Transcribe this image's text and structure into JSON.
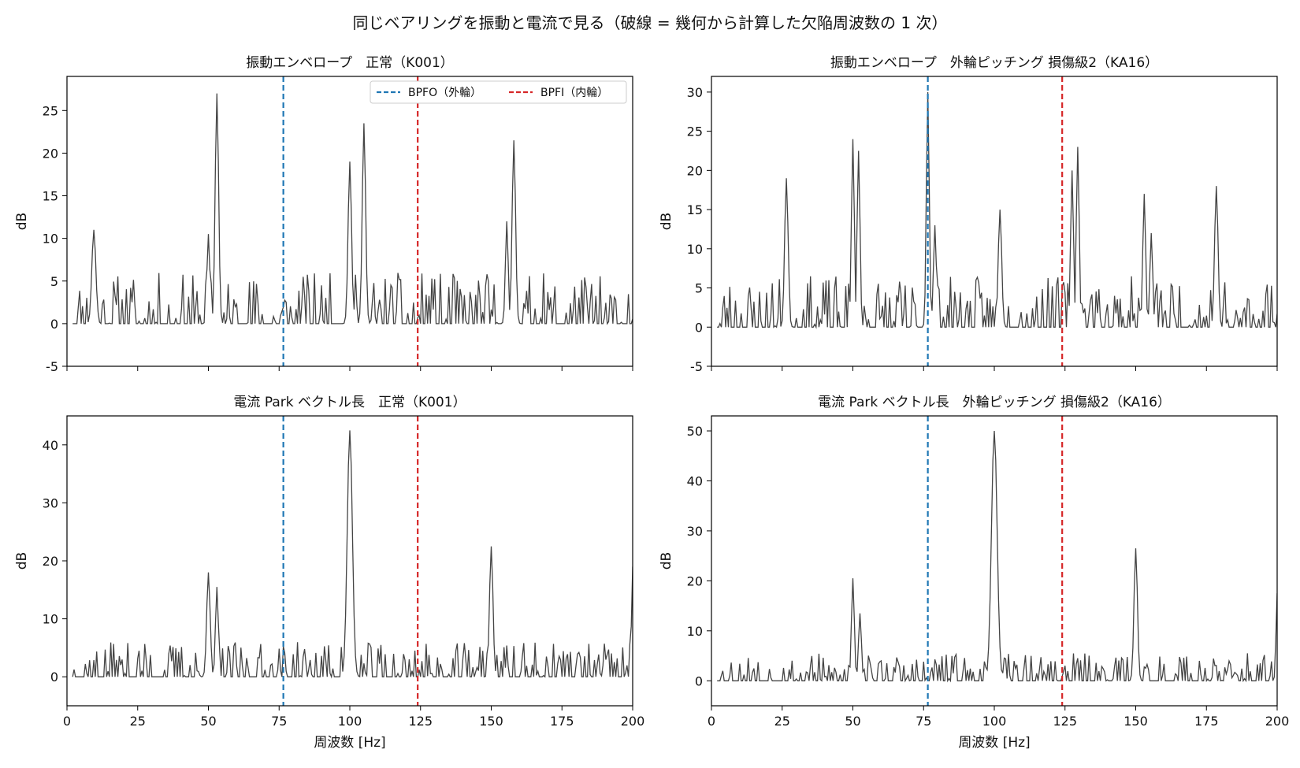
{
  "figure": {
    "title": "同じベアリングを振動と電流で見る（破線 = 幾何から計算した欠陥周波数の 1 次）",
    "xlabel": "周波数 [Hz]",
    "colors": {
      "trace": "#444444",
      "bpfo": "#1f77b4",
      "bpfi": "#d62728",
      "axis": "#000000"
    }
  },
  "legend": {
    "placement": "top-right of first panel",
    "entries": [
      {
        "label": "BPFO（外輪）",
        "color": "#1f77b4",
        "style": "dashed"
      },
      {
        "label": "BPFI（内輪）",
        "color": "#d62728",
        "style": "dashed"
      }
    ]
  },
  "chart_data": [
    {
      "type": "line",
      "title": "振動エンベロープ　正常（K001）",
      "xlabel": "",
      "ylabel": "dB",
      "xlim": [
        0,
        200
      ],
      "ylim": [
        -5,
        29
      ],
      "xticks": [
        0,
        25,
        50,
        75,
        100,
        125,
        150,
        175,
        200
      ],
      "yticks": [
        -5,
        0,
        5,
        10,
        15,
        20,
        25
      ],
      "show_xtick_labels": false,
      "show_legend": true,
      "vlines": [
        {
          "name": "BPFO（外輪）",
          "x": 76.5
        },
        {
          "name": "BPFI（内輪）",
          "x": 124
        }
      ],
      "series": [
        {
          "seed": 11,
          "noise_amp": 7,
          "noise_offset": -1,
          "peaks": [
            [
              9.5,
              11,
              0.7
            ],
            [
              50,
              10.5,
              0.5
            ],
            [
              53,
              27,
              0.6
            ],
            [
              100,
              19,
              0.6
            ],
            [
              105,
              23.5,
              0.6
            ],
            [
              155.5,
              12,
              0.5
            ],
            [
              158,
              21.5,
              0.6
            ]
          ]
        }
      ]
    },
    {
      "type": "line",
      "title": "振動エンベロープ　外輪ピッチング 損傷級2（KA16）",
      "xlabel": "",
      "ylabel": "dB",
      "xlim": [
        0,
        200
      ],
      "ylim": [
        -5,
        32
      ],
      "xticks": [
        0,
        25,
        50,
        75,
        100,
        125,
        150,
        175,
        200
      ],
      "yticks": [
        -5,
        0,
        5,
        10,
        15,
        20,
        25,
        30
      ],
      "show_xtick_labels": false,
      "show_legend": false,
      "vlines": [
        {
          "name": "BPFO（外輪）",
          "x": 76.5
        },
        {
          "name": "BPFI（内輪）",
          "x": 124
        }
      ],
      "series": [
        {
          "seed": 23,
          "noise_amp": 7,
          "noise_offset": -0.5,
          "peaks": [
            [
              26.5,
              19,
              0.6
            ],
            [
              50,
              24,
              0.5
            ],
            [
              52,
              22.5,
              0.5
            ],
            [
              76.5,
              30,
              0.5
            ],
            [
              79,
              13,
              0.5
            ],
            [
              102,
              15,
              0.6
            ],
            [
              127.5,
              20,
              0.5
            ],
            [
              129.5,
              23,
              0.5
            ],
            [
              153,
              17,
              0.5
            ],
            [
              155.5,
              12,
              0.5
            ],
            [
              178.5,
              18,
              0.6
            ]
          ]
        }
      ]
    },
    {
      "type": "line",
      "title": "電流 Park ベクトル長　正常（K001）",
      "xlabel": "周波数 [Hz]",
      "ylabel": "dB",
      "xlim": [
        0,
        200
      ],
      "ylim": [
        -5,
        45
      ],
      "xticks": [
        0,
        25,
        50,
        75,
        100,
        125,
        150,
        175,
        200
      ],
      "yticks": [
        0,
        10,
        20,
        30,
        40
      ],
      "show_xtick_labels": true,
      "show_legend": false,
      "vlines": [
        {
          "name": "BPFO（外輪）",
          "x": 76.5
        },
        {
          "name": "BPFI（内輪）",
          "x": 124
        }
      ],
      "series": [
        {
          "seed": 37,
          "noise_amp": 6.5,
          "noise_offset": -0.5,
          "peaks": [
            [
              50,
              18,
              0.6
            ],
            [
              53,
              15.5,
              0.5
            ],
            [
              100,
              42.5,
              0.9
            ],
            [
              150,
              22.5,
              0.6
            ],
            [
              200,
              19,
              0.4
            ]
          ]
        }
      ]
    },
    {
      "type": "line",
      "title": "電流 Park ベクトル長　外輪ピッチング 損傷級2（KA16）",
      "xlabel": "周波数 [Hz]",
      "ylabel": "dB",
      "xlim": [
        0,
        200
      ],
      "ylim": [
        -5,
        53
      ],
      "xticks": [
        0,
        25,
        50,
        75,
        100,
        125,
        150,
        175,
        200
      ],
      "yticks": [
        0,
        10,
        20,
        30,
        40,
        50
      ],
      "show_xtick_labels": true,
      "show_legend": false,
      "vlines": [
        {
          "name": "BPFO（外輪）",
          "x": 76.5
        },
        {
          "name": "BPFI（内輪）",
          "x": 124
        }
      ],
      "series": [
        {
          "seed": 53,
          "noise_amp": 6,
          "noise_offset": -0.5,
          "peaks": [
            [
              50,
              20.5,
              0.5
            ],
            [
              52.5,
              13.5,
              0.5
            ],
            [
              100,
              50,
              1.0
            ],
            [
              150,
              26.5,
              0.6
            ],
            [
              200,
              17.5,
              0.4
            ]
          ]
        }
      ]
    }
  ]
}
